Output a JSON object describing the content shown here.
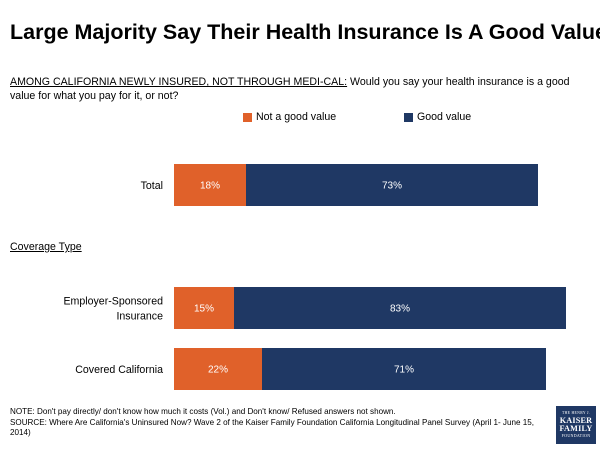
{
  "title": "Large Majority Say Their Health Insurance Is A Good Value",
  "question": {
    "lead": "AMONG CALIFORNIA NEWLY INSURED, NOT THROUGH MEDI-CAL:",
    "text": " Would you say your health insurance is a good value for what you pay for it, or not?"
  },
  "section_label": "Coverage Type",
  "colors": {
    "not_good": "#e0612a",
    "good": "#1f3864"
  },
  "chart_data": {
    "type": "bar",
    "orientation": "horizontal",
    "stacked": true,
    "categories": [
      "Total",
      "Employer-Sponsored Insurance",
      "Covered California"
    ],
    "category_labels": [
      [
        "Total"
      ],
      [
        "Employer-Sponsored",
        "Insurance"
      ],
      [
        "Covered California"
      ]
    ],
    "series": [
      {
        "name": "Not a good value",
        "values": [
          18,
          15,
          22
        ],
        "labels": [
          "18%",
          "15%",
          "22%"
        ]
      },
      {
        "name": "Good value",
        "values": [
          73,
          83,
          71
        ],
        "labels": [
          "73%",
          "83%",
          "71%"
        ]
      }
    ],
    "xlim": [
      0,
      100
    ],
    "legend": "top"
  },
  "footnote": {
    "note": "NOTE: Don't pay directly/ don't know how much it costs (Vol.) and Don't know/ Refused answers not shown.",
    "source": "SOURCE: Where Are California's Uninsured Now? Wave 2 of the Kaiser Family Foundation California Longitudinal Panel Survey (April 1- June 15, 2014)"
  },
  "logo": {
    "top": "THE HENRY J.",
    "line1": "KAISER",
    "line2": "FAMILY",
    "bottom": "FOUNDATION"
  }
}
